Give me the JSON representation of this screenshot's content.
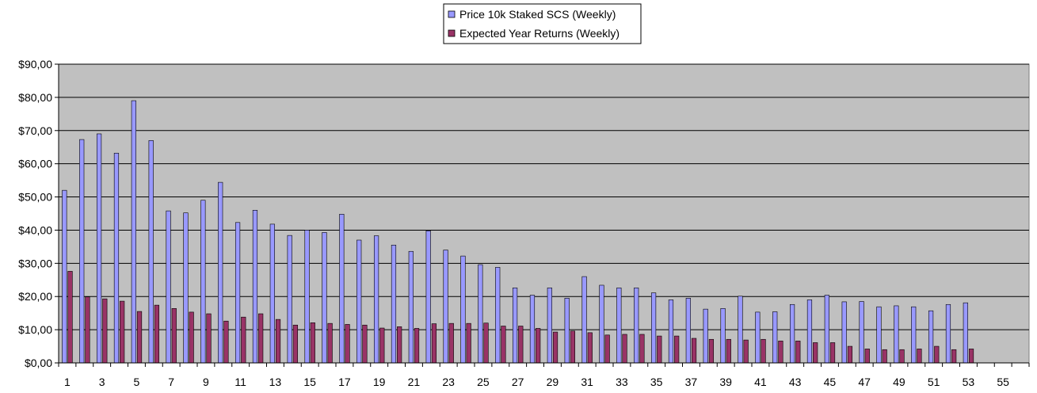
{
  "chart_data": {
    "type": "bar",
    "title": "",
    "xlabel": "",
    "ylabel": "",
    "ylim": [
      0,
      90
    ],
    "y_ticks": [
      "$0,00",
      "$10,00",
      "$20,00",
      "$30,00",
      "$40,00",
      "$50,00",
      "$60,00",
      "$70,00",
      "$80,00",
      "$90,00"
    ],
    "x_tick_labels": [
      "1",
      "3",
      "5",
      "7",
      "9",
      "11",
      "13",
      "15",
      "17",
      "19",
      "21",
      "23",
      "25",
      "27",
      "29",
      "31",
      "33",
      "35",
      "37",
      "39",
      "41",
      "43",
      "45",
      "47",
      "49",
      "51",
      "53",
      "55"
    ],
    "categories": [
      1,
      2,
      3,
      4,
      5,
      6,
      7,
      8,
      9,
      10,
      11,
      12,
      13,
      14,
      15,
      16,
      17,
      18,
      19,
      20,
      21,
      22,
      23,
      24,
      25,
      26,
      27,
      28,
      29,
      30,
      31,
      32,
      33,
      34,
      35,
      36,
      37,
      38,
      39,
      40,
      41,
      42,
      43,
      44,
      45,
      46,
      47,
      48,
      49,
      50,
      51,
      52,
      53,
      54,
      55,
      56
    ],
    "grid": true,
    "legend_position": "top-center",
    "plot_background": "#c0c0c0",
    "series": [
      {
        "name": "Price 10k Staked SCS (Weekly)",
        "color": "#9999ff",
        "values": [
          52.0,
          67.3,
          69.0,
          63.2,
          79.0,
          67.0,
          45.8,
          45.2,
          49.0,
          54.4,
          42.3,
          46.0,
          41.8,
          38.4,
          40.0,
          39.3,
          44.8,
          37.0,
          38.3,
          35.5,
          33.6,
          39.8,
          34.0,
          32.2,
          29.6,
          28.8,
          22.6,
          20.4,
          22.6,
          19.5,
          26.0,
          23.4,
          22.6,
          22.6,
          21.1,
          19.0,
          19.5,
          16.2,
          16.4,
          20.1,
          15.3,
          15.4,
          17.6,
          19.0,
          20.4,
          18.4,
          18.5,
          16.9,
          17.2,
          16.9,
          15.7,
          17.6,
          18.1,
          null,
          null,
          null
        ]
      },
      {
        "name": "Expected Year Returns (Weekly)",
        "color": "#993366",
        "values": [
          27.6,
          19.9,
          19.3,
          18.6,
          15.5,
          17.4,
          16.4,
          15.3,
          14.8,
          12.6,
          13.8,
          14.8,
          13.1,
          11.4,
          12.1,
          11.9,
          11.6,
          11.4,
          10.5,
          10.9,
          10.4,
          11.8,
          11.9,
          11.9,
          12.0,
          11.1,
          11.1,
          10.4,
          9.3,
          9.6,
          9.1,
          8.4,
          8.6,
          8.6,
          8.1,
          8.1,
          7.4,
          7.1,
          7.1,
          6.9,
          7.1,
          6.6,
          6.6,
          6.1,
          6.1,
          5.0,
          4.2,
          4.0,
          4.0,
          4.2,
          5.0,
          4.0,
          4.2,
          null,
          null,
          null
        ]
      }
    ]
  }
}
